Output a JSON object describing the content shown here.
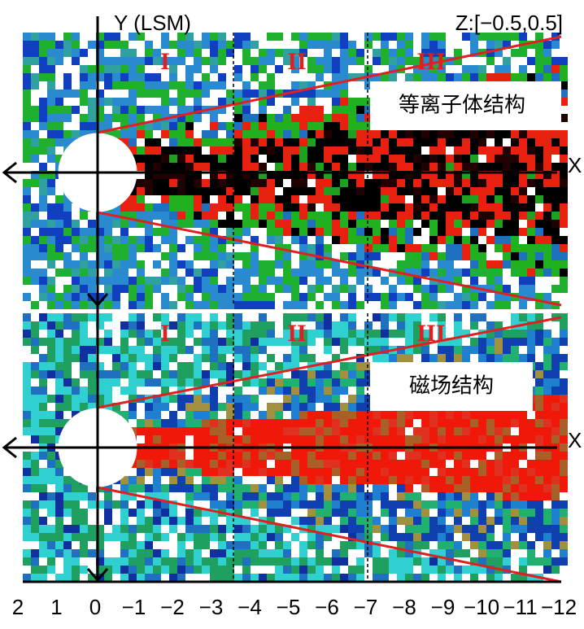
{
  "top_panel": {
    "y_axis_label": "Y (LSM)",
    "z_range": "Z:[−0.5,0.5]",
    "title": "等离子体结构",
    "x_label": "X",
    "regions": [
      "I",
      "II",
      "III"
    ]
  },
  "bottom_panel": {
    "title": "磁场结构",
    "x_label": "X",
    "regions": [
      "I",
      "II",
      "III"
    ]
  },
  "x_axis": {
    "tick_labels": [
      "2",
      "1",
      "0",
      "−1",
      "−2",
      "−3",
      "−4",
      "−5",
      "−6",
      "−7",
      "−8",
      "−9",
      "−10",
      "−11",
      "−12"
    ]
  }
}
